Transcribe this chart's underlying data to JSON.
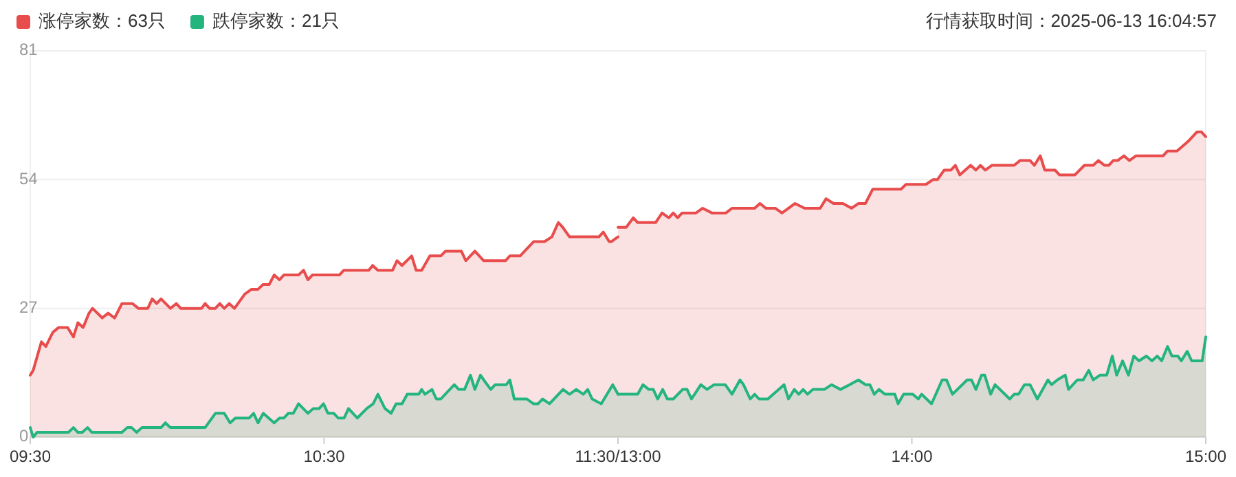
{
  "chart_data": [
    {
      "type": "area",
      "xlim": [
        9.5,
        11.5
      ],
      "xticks": [
        {
          "value": 9.5,
          "label": "09:30"
        },
        {
          "value": 10.5,
          "label": "10:30"
        },
        {
          "value": 11.5,
          "label": "11:30/13:00"
        }
      ],
      "ylim": [
        0,
        81
      ],
      "yticks": [
        0,
        27,
        54,
        81
      ],
      "grid": "y",
      "legend": "top left",
      "series": [
        {
          "name": "涨停家数：63只",
          "color": "#e84c4c",
          "x": [
            9.5,
            9.51,
            9.538,
            9.553,
            9.577,
            9.597,
            9.627,
            9.647,
            9.662,
            9.68,
            9.7,
            9.712,
            9.745,
            9.765,
            9.787,
            9.812,
            9.848,
            9.868,
            9.9,
            9.915,
            9.93,
            9.945,
            9.977,
            9.997,
            10.012,
            10.083,
            10.095,
            10.11,
            10.13,
            10.145,
            10.16,
            10.177,
            10.195,
            10.23,
            10.253,
            10.275,
            10.292,
            10.313,
            10.33,
            10.348,
            10.363,
            10.413,
            10.43,
            10.445,
            10.46,
            10.552,
            10.567,
            10.652,
            10.665,
            10.683,
            10.733,
            10.748,
            10.765,
            10.798,
            10.813,
            10.832,
            10.86,
            10.897,
            10.913,
            10.967,
            10.982,
            11.013,
            11.043,
            11.117,
            11.132,
            11.167,
            11.213,
            11.25,
            11.275,
            11.297,
            11.312,
            11.335,
            11.435,
            11.45,
            11.47,
            11.477,
            11.5
          ],
          "values": [
            13,
            14,
            20,
            19,
            22,
            23,
            23,
            21,
            24,
            23,
            26,
            27,
            25,
            26,
            25,
            28,
            28,
            27,
            27,
            29,
            28,
            29,
            27,
            28,
            27,
            27,
            28,
            27,
            27,
            28,
            27,
            28,
            27,
            30,
            31,
            31,
            32,
            32,
            34,
            33,
            34,
            34,
            35,
            33,
            34,
            34,
            35,
            35,
            36,
            35,
            35,
            37,
            36,
            38,
            35,
            35,
            38,
            38,
            39,
            39,
            37,
            39,
            37,
            37,
            38,
            38,
            41,
            41,
            42,
            45,
            44,
            42,
            42,
            43,
            41,
            41,
            42
          ]
        },
        {
          "name": "跌停家数：21只",
          "color": "#24b47e",
          "x": [
            9.5,
            9.51,
            9.523,
            9.63,
            9.647,
            9.662,
            9.677,
            9.695,
            9.71,
            9.812,
            9.83,
            9.845,
            9.862,
            9.88,
            9.945,
            9.96,
            9.977,
            10.095,
            10.13,
            10.16,
            10.18,
            10.198,
            10.245,
            10.26,
            10.275,
            10.293,
            10.33,
            10.348,
            10.363,
            10.378,
            10.395,
            10.413,
            10.445,
            10.463,
            10.483,
            10.498,
            10.513,
            10.533,
            10.548,
            10.568,
            10.583,
            10.613,
            10.645,
            10.667,
            10.683,
            10.707,
            10.728,
            10.745,
            10.765,
            10.783,
            10.822,
            10.832,
            10.843,
            10.867,
            10.882,
            10.897,
            10.943,
            10.958,
            10.978,
            10.998,
            11.013,
            11.032,
            11.043,
            11.067,
            11.082,
            11.12,
            11.132,
            11.147,
            11.19,
            11.212,
            11.228,
            11.243,
            11.267,
            11.313,
            11.335,
            11.358,
            11.382,
            11.397,
            11.412,
            11.443,
            11.482,
            11.5
          ],
          "values": [
            2,
            0,
            1,
            1,
            2,
            1,
            1,
            2,
            1,
            1,
            2,
            2,
            1,
            2,
            2,
            3,
            2,
            2,
            5,
            5,
            3,
            4,
            4,
            5,
            3,
            5,
            3,
            4,
            4,
            5,
            5,
            7,
            5,
            6,
            6,
            7,
            5,
            5,
            4,
            4,
            6,
            4,
            6,
            7,
            9,
            6,
            5,
            7,
            7,
            9,
            9,
            10,
            9,
            10,
            8,
            8,
            11,
            10,
            10,
            13,
            10,
            13,
            12,
            10,
            11,
            11,
            12,
            8,
            8,
            7,
            7,
            8,
            7,
            10,
            9,
            10,
            9,
            10,
            8,
            7,
            11,
            9
          ]
        }
      ]
    },
    {
      "type": "area",
      "subtitle": "行情获取时间：2025-06-13 16:04:57",
      "xlim": [
        13,
        15
      ],
      "xticks": [
        {
          "value": 13,
          "label": null
        },
        {
          "value": 14,
          "label": "14:00"
        },
        {
          "value": 15,
          "label": "15:00"
        }
      ],
      "ylim": [
        0,
        81
      ],
      "yticks": [
        0,
        27,
        54,
        81
      ],
      "grid": "y",
      "tick_labels": "x",
      "series": [
        {
          "color": "#e84c4c",
          "x": [
            13,
            13.028,
            13.052,
            13.067,
            13.128,
            13.15,
            13.173,
            13.188,
            13.203,
            13.218,
            13.265,
            13.288,
            13.32,
            13.367,
            13.388,
            13.465,
            13.483,
            13.503,
            13.535,
            13.558,
            13.602,
            13.635,
            13.688,
            13.708,
            13.733,
            13.765,
            13.795,
            13.818,
            13.842,
            13.867,
            13.963,
            13.98,
            14.048,
            14.072,
            14.087,
            14.11,
            14.133,
            14.148,
            14.163,
            14.2,
            14.218,
            14.233,
            14.25,
            14.272,
            14.348,
            14.368,
            14.402,
            14.417,
            14.437,
            14.452,
            14.487,
            14.502,
            14.555,
            14.587,
            14.617,
            14.635,
            14.655,
            14.67,
            14.685,
            14.7,
            14.722,
            14.74,
            14.763,
            14.855,
            14.87,
            14.902,
            14.94,
            14.97,
            14.985,
            15
          ],
          "values": [
            44,
            44,
            46,
            45,
            45,
            47,
            46,
            47,
            46,
            47,
            47,
            48,
            47,
            47,
            48,
            48,
            49,
            48,
            48,
            47,
            49,
            48,
            48,
            50,
            49,
            49,
            48,
            49,
            49,
            52,
            52,
            53,
            53,
            54,
            54,
            56,
            56,
            57,
            55,
            57,
            56,
            57,
            56,
            57,
            57,
            58,
            58,
            57,
            59,
            56,
            56,
            55,
            55,
            57,
            57,
            58,
            57,
            57,
            58,
            58,
            59,
            58,
            59,
            59,
            60,
            60,
            62,
            64,
            64,
            63
          ]
        },
        {
          "color": "#24b47e",
          "x": [
            13,
            13.067,
            13.085,
            13.105,
            13.12,
            13.135,
            13.152,
            13.168,
            13.188,
            13.22,
            13.235,
            13.25,
            13.282,
            13.303,
            13.327,
            13.365,
            13.388,
            13.415,
            13.427,
            13.45,
            13.465,
            13.48,
            13.51,
            13.565,
            13.58,
            13.6,
            13.615,
            13.63,
            13.645,
            13.663,
            13.702,
            13.727,
            13.757,
            13.788,
            13.818,
            13.842,
            13.857,
            13.872,
            13.888,
            13.908,
            13.942,
            13.953,
            13.972,
            14.003,
            14.022,
            14.033,
            14.067,
            14.103,
            14.118,
            14.138,
            14.188,
            14.203,
            14.218,
            14.237,
            14.248,
            14.268,
            14.283,
            14.333,
            14.348,
            14.363,
            14.383,
            14.402,
            14.427,
            14.463,
            14.475,
            14.495,
            14.522,
            14.533,
            14.563,
            14.583,
            14.602,
            14.617,
            14.64,
            14.663,
            14.682,
            14.697,
            14.717,
            14.737,
            14.755,
            14.773,
            14.798,
            14.817,
            14.835,
            14.85,
            14.87,
            14.885,
            14.905,
            14.917,
            14.937,
            14.952,
            14.988,
            15
          ],
          "values": [
            9,
            9,
            11,
            10,
            10,
            8,
            10,
            8,
            8,
            10,
            10,
            8,
            11,
            10,
            11,
            11,
            9,
            12,
            11,
            8,
            9,
            8,
            8,
            11,
            8,
            10,
            9,
            10,
            9,
            10,
            10,
            11,
            10,
            11,
            12,
            11,
            11,
            9,
            10,
            9,
            9,
            7,
            9,
            9,
            8,
            9,
            7,
            12,
            12,
            9,
            12,
            12,
            10,
            13,
            13,
            9,
            11,
            8,
            9,
            9,
            11,
            11,
            8,
            12,
            11,
            12,
            13,
            10,
            12,
            12,
            14,
            12,
            13,
            13,
            17,
            13,
            16,
            13,
            17,
            16,
            17,
            16,
            17,
            16,
            19,
            17,
            17,
            16,
            18,
            16,
            16,
            21
          ]
        }
      ]
    }
  ]
}
